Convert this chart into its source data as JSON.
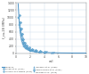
{
  "title": "",
  "ylabel": "f_cu,28 (MPa)",
  "xlabel": "w/l",
  "xlim": [
    0,
    10
  ],
  "ylim": [
    0,
    1400
  ],
  "bg_color": "#ffffff",
  "grid_color": "#c8daea",
  "curve_color": "#4a90c4",
  "scatter_color": "#7ab8d8",
  "curve_x": [
    0.3,
    0.38,
    0.46,
    0.55,
    0.65,
    0.75,
    0.88,
    1.0,
    1.15,
    1.35,
    1.6,
    1.9,
    2.3,
    2.8,
    3.4,
    4.2,
    5.2,
    6.5,
    8.0,
    10.0
  ],
  "curve_y": [
    1380,
    1120,
    880,
    680,
    520,
    400,
    305,
    240,
    185,
    140,
    105,
    78,
    57,
    42,
    30,
    21,
    15,
    10,
    7,
    5
  ],
  "scatter_sets": [
    {
      "x": [
        0.42,
        0.52,
        0.62,
        0.72,
        0.85,
        1.0,
        1.2,
        1.45,
        1.7,
        2.0,
        2.4,
        2.9
      ],
      "y": [
        980,
        800,
        640,
        490,
        370,
        270,
        200,
        148,
        110,
        80,
        57,
        40
      ],
      "marker": "s"
    },
    {
      "x": [
        0.5,
        0.62,
        0.75,
        0.9,
        1.08,
        1.3,
        1.55,
        1.85,
        2.2,
        2.7,
        3.3,
        4.1
      ],
      "y": [
        850,
        680,
        530,
        400,
        300,
        225,
        165,
        120,
        88,
        62,
        44,
        30
      ],
      "marker": "o"
    },
    {
      "x": [
        0.55,
        0.68,
        0.83,
        1.0,
        1.22,
        1.48,
        1.8,
        2.2,
        2.7,
        3.3,
        4.1,
        5.1
      ],
      "y": [
        740,
        590,
        455,
        345,
        255,
        188,
        138,
        100,
        72,
        51,
        36,
        25
      ],
      "marker": "^"
    },
    {
      "x": [
        0.48,
        0.6,
        0.73,
        0.88,
        1.06,
        1.28,
        1.55,
        1.88,
        2.28,
        2.78,
        3.38,
        4.1
      ],
      "y": [
        1050,
        850,
        680,
        530,
        400,
        298,
        218,
        158,
        114,
        82,
        58,
        41
      ],
      "marker": "D"
    },
    {
      "x": [
        0.58,
        0.72,
        0.88,
        1.07,
        1.3,
        1.58,
        1.92,
        2.35,
        2.86,
        3.5,
        4.3,
        5.3
      ],
      "y": [
        650,
        510,
        395,
        300,
        225,
        167,
        122,
        89,
        64,
        46,
        33,
        23
      ],
      "marker": "v"
    }
  ],
  "legend_labels": [
    "Trendline",
    "Niyazi et al. (2011)",
    "Lorenco and Segura (2006)",
    "Jacobsen et al. (1995)",
    "Hamarlachek et al. (2001)",
    "Madigan et al. (2009)"
  ],
  "ytick_labels": [
    "0",
    "200",
    "400",
    "600",
    "800",
    "1000",
    "1200",
    "1400"
  ],
  "yticks": [
    0,
    200,
    400,
    600,
    800,
    1000,
    1200,
    1400
  ],
  "xticks": [
    0,
    2,
    4,
    6,
    8,
    10
  ]
}
